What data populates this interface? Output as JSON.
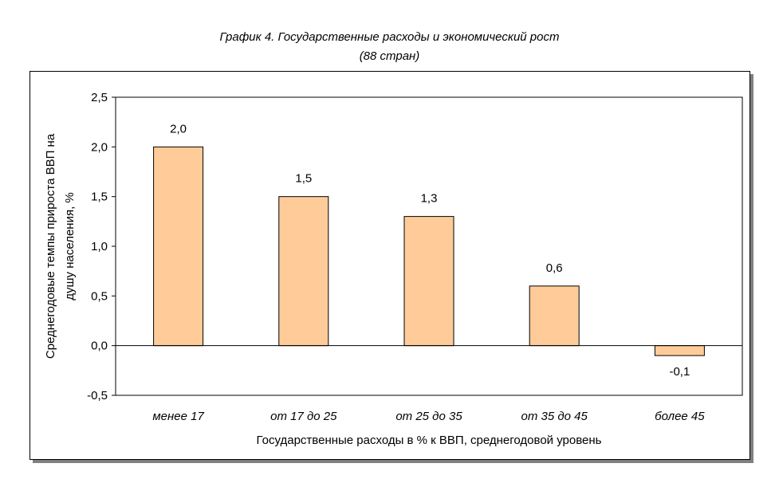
{
  "chart_data": {
    "type": "bar",
    "title": "График 4. Государственные расходы и экономический рост",
    "subtitle": "(88 стран)",
    "categories": [
      "менее 17",
      "от 17 до 25",
      "от 25 до 35",
      "от 35 до 45",
      "более 45"
    ],
    "values": [
      2.0,
      1.5,
      1.3,
      0.6,
      -0.1
    ],
    "value_labels": [
      "2,0",
      "1,5",
      "1,3",
      "0,6",
      "-0,1"
    ],
    "xlabel": "Государственные расходы в % к ВВП, среднегодовой уровень",
    "ylabel": [
      "Среднегодовые темпы прироста ВВП на",
      "душу населения, %"
    ],
    "ylim": [
      -0.5,
      2.5
    ],
    "yticks": [
      2.5,
      2.0,
      1.5,
      1.0,
      0.5,
      0.0,
      -0.5
    ],
    "ytick_labels": [
      "2,5",
      "2,0",
      "1,5",
      "1,0",
      "0,5",
      "0,0",
      "-0,5"
    ],
    "grid": false,
    "legend": "none",
    "bar_color": "#FFCC99",
    "bar_edge_color": "#000000"
  }
}
